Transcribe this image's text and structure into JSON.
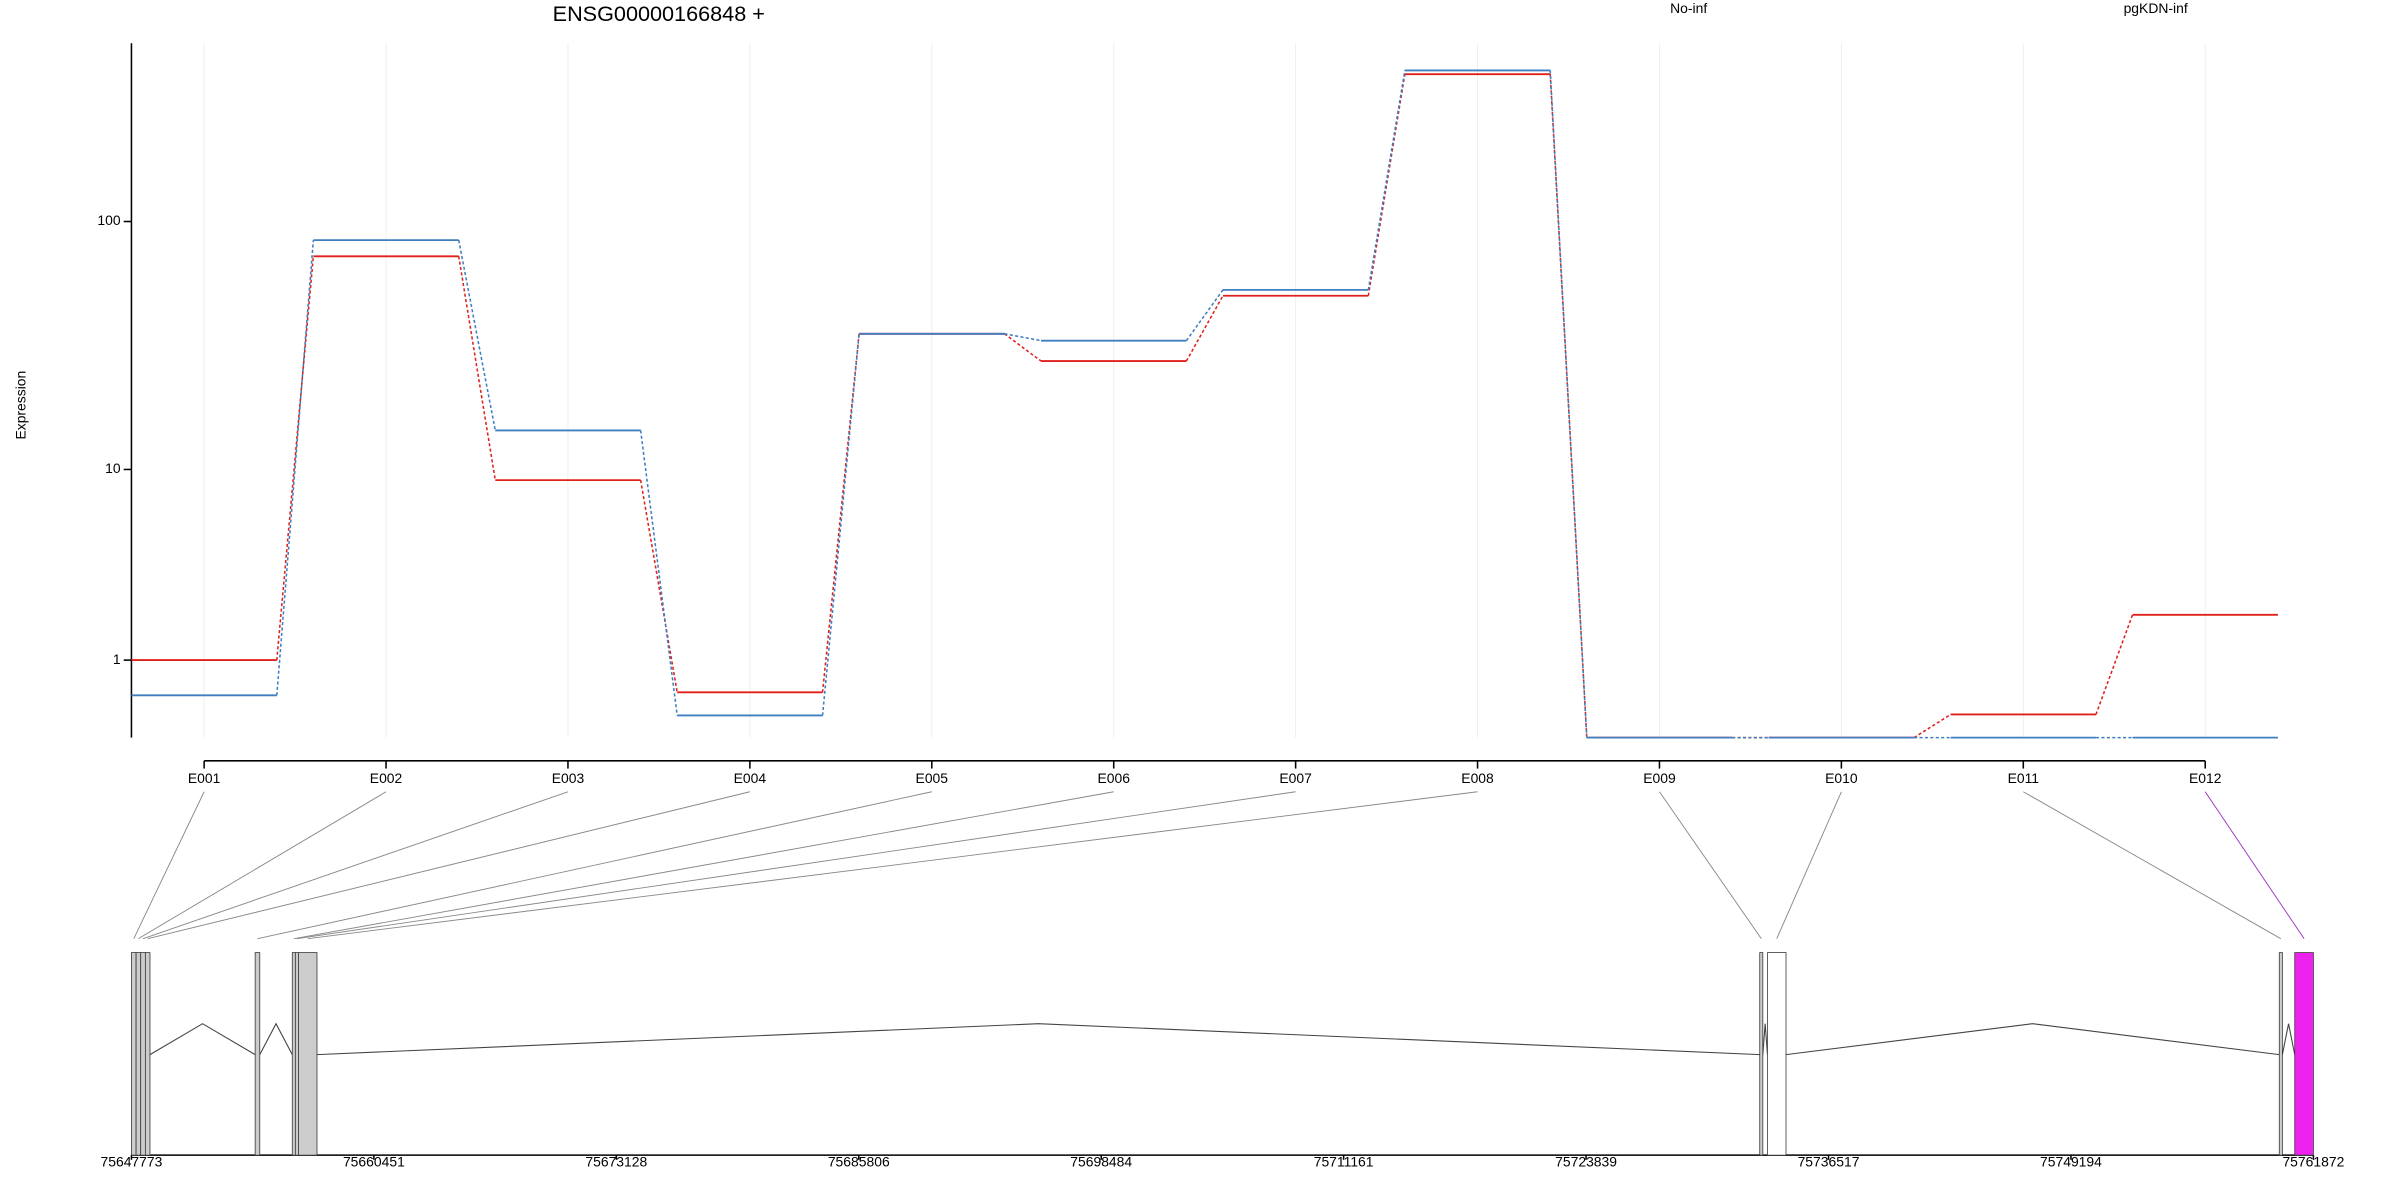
{
  "chart_data": [
    {
      "type": "step-line",
      "title": "ENSG00000166848 +",
      "y_label": "Expression",
      "yscale": "log1p",
      "categories": [
        "E001",
        "E002",
        "E003",
        "E004",
        "E005",
        "E006",
        "E007",
        "E008",
        "E009",
        "E010",
        "E011",
        "E012"
      ],
      "series": [
        {
          "name": "No-inf",
          "color": "#e0201b",
          "values": [
            1,
            73,
            9,
            0.5,
            36,
            28,
            51,
            376,
            0,
            0,
            0.23,
            2
          ]
        },
        {
          "name": "pgKDN-inf",
          "color": "#3f7fc0",
          "values": [
            0.46,
            84.5,
            14.6,
            0.22,
            36,
            33.8,
            53.8,
            389,
            0,
            0,
            0,
            0
          ]
        }
      ],
      "ylim": [
        0,
        496
      ],
      "yticks": [
        1,
        10,
        100
      ],
      "grid": true
    },
    {
      "type": "gene-model",
      "xlim": [
        75647773,
        75761872
      ],
      "xticks": [
        75647773,
        75660451,
        75673128,
        75685806,
        75698484,
        75711161,
        75723839,
        75736517,
        75749194,
        75761872
      ],
      "exons": [
        {
          "start": 75647773,
          "end": 75648016,
          "color": "#cccccc"
        },
        {
          "start": 75648016,
          "end": 75648258,
          "color": "#cccccc"
        },
        {
          "start": 75648258,
          "end": 75648501,
          "color": "#cccccc"
        },
        {
          "start": 75648501,
          "end": 75648743,
          "color": "#cccccc"
        },
        {
          "start": 75654242,
          "end": 75654484,
          "color": "#cccccc"
        },
        {
          "start": 75656183,
          "end": 75656344,
          "color": "#cccccc"
        },
        {
          "start": 75656344,
          "end": 75656506,
          "color": "#cccccc"
        },
        {
          "start": 75656506,
          "end": 75657476,
          "color": "#cccccc"
        },
        {
          "start": 75732920,
          "end": 75733081,
          "color": "#cccccc"
        },
        {
          "start": 75733324,
          "end": 75734294,
          "color": "#ffffff"
        },
        {
          "start": 75760087,
          "end": 75760249,
          "color": "#cccccc"
        },
        {
          "start": 75760896,
          "end": 75761872,
          "color": "#ee22ee"
        }
      ]
    }
  ]
}
